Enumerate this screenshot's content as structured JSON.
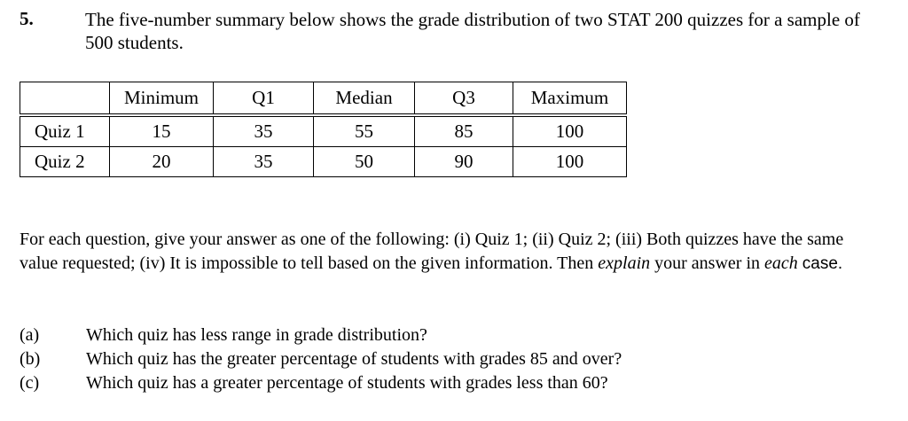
{
  "question": {
    "number": "5.",
    "text": "The five-number summary below shows the grade distribution of two STAT 200 quizzes for a sample of 500 students."
  },
  "table": {
    "header": [
      "Minimum",
      "Q1",
      "Median",
      "Q3",
      "Maximum"
    ],
    "rows": [
      [
        "Quiz 1",
        15,
        35,
        55,
        85,
        100
      ],
      [
        "Quiz 2",
        20,
        35,
        50,
        90,
        100
      ]
    ]
  },
  "instructions": {
    "part1": "For each question, give your answer as one of the following: (i) Quiz 1; (ii) Quiz 2; (iii) Both quizzes have the same value requested; (iv) It is impossible to tell based on the given information. Then",
    "emph1": "explain",
    "part2": "your answer in",
    "emph2": "each",
    "part3": "case."
  },
  "items": [
    {
      "label": "(a)",
      "text": "Which quiz has less range in grade distribution?"
    },
    {
      "label": "(b)",
      "text": "Which quiz has the greater percentage of students with grades 85 and over?"
    },
    {
      "label": "(c)",
      "text": "Which quiz has a greater percentage of students with grades less than 60?"
    }
  ]
}
